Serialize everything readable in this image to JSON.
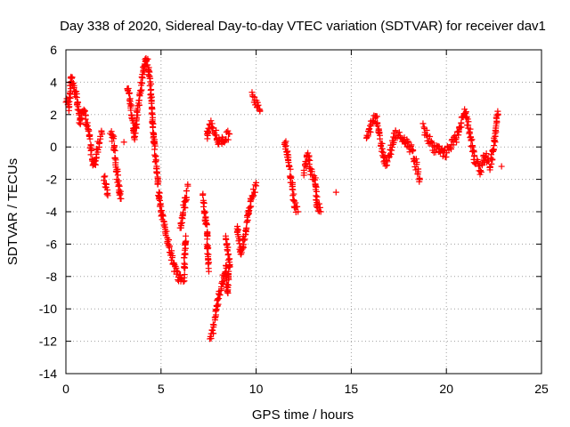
{
  "chart_data": {
    "type": "scatter",
    "title": "Day 338 of 2020, Sidereal Day-to-day VTEC variation (SDTVAR) for receiver dav1",
    "xlabel": "GPS time / hours",
    "ylabel": "SDTVAR / TECUs",
    "xlim": [
      0,
      25
    ],
    "ylim": [
      -14,
      6
    ],
    "xticks": [
      0,
      5,
      10,
      15,
      20,
      25
    ],
    "yticks": [
      -14,
      -12,
      -10,
      -8,
      -6,
      -4,
      -2,
      0,
      2,
      4,
      6
    ],
    "grid": true,
    "marker": "plus",
    "marker_color": "#ff0000",
    "series": [
      {
        "name": "SDTVAR",
        "trace": [
          [
            0.0,
            3.0
          ],
          [
            0.15,
            2.5
          ],
          [
            0.3,
            4.3
          ],
          [
            0.45,
            3.5
          ],
          [
            0.6,
            2.8
          ],
          [
            0.75,
            1.5
          ],
          [
            0.9,
            2.5
          ],
          [
            1.05,
            1.8
          ],
          [
            1.2,
            0.8
          ],
          [
            1.35,
            -0.5
          ],
          [
            1.5,
            -1.2
          ],
          [
            1.7,
            0.2
          ],
          [
            1.9,
            0.8
          ],
          [
            2.0,
            -1.8
          ],
          [
            2.2,
            -3.0
          ],
          [
            2.35,
            0.9
          ],
          [
            2.5,
            0.4
          ],
          [
            2.7,
            -1.8
          ],
          [
            2.9,
            -3.2
          ],
          [
            3.05,
            0.3
          ],
          [
            3.25,
            3.8
          ],
          [
            3.45,
            2.2
          ],
          [
            3.6,
            0.5
          ],
          [
            3.8,
            2.5
          ],
          [
            4.0,
            4.2
          ],
          [
            4.2,
            5.6
          ],
          [
            4.35,
            4.8
          ],
          [
            4.5,
            2.9
          ],
          [
            4.6,
            0.8
          ],
          [
            4.75,
            -1.2
          ],
          [
            4.9,
            -3.0
          ],
          [
            5.05,
            -4.2
          ],
          [
            5.2,
            -5.0
          ],
          [
            5.4,
            -6.0
          ],
          [
            5.6,
            -7.0
          ],
          [
            5.8,
            -7.8
          ],
          [
            6.0,
            -8.2
          ],
          [
            6.2,
            -8.0
          ],
          [
            6.3,
            -5.5
          ],
          [
            6.4,
            -2.5
          ],
          [
            6.2,
            -3.8
          ],
          [
            6.0,
            -5.0
          ],
          [
            7.2,
            -3.0
          ],
          [
            7.4,
            -5.0
          ],
          [
            7.5,
            -7.5
          ],
          [
            7.55,
            -11.8
          ],
          [
            7.7,
            -11.5
          ],
          [
            7.85,
            -10.5
          ],
          [
            8.0,
            -9.5
          ],
          [
            8.2,
            -8.5
          ],
          [
            8.4,
            -7.5
          ],
          [
            8.5,
            -9.0
          ],
          [
            8.6,
            -7.0
          ],
          [
            8.4,
            -5.5
          ],
          [
            7.4,
            0.5
          ],
          [
            7.6,
            1.5
          ],
          [
            7.8,
            1.0
          ],
          [
            8.0,
            0.3
          ],
          [
            8.3,
            0.5
          ],
          [
            8.6,
            0.8
          ],
          [
            9.0,
            -5.0
          ],
          [
            9.2,
            -6.5
          ],
          [
            9.4,
            -5.5
          ],
          [
            9.6,
            -4.0
          ],
          [
            9.8,
            -3.0
          ],
          [
            10.0,
            -2.4
          ],
          [
            9.8,
            3.2
          ],
          [
            10.0,
            2.8
          ],
          [
            10.2,
            2.2
          ],
          [
            11.5,
            0.5
          ],
          [
            11.7,
            -1.0
          ],
          [
            11.9,
            -2.5
          ],
          [
            12.0,
            -3.5
          ],
          [
            12.2,
            -4.0
          ],
          [
            12.5,
            -1.5
          ],
          [
            12.7,
            -0.5
          ],
          [
            12.9,
            -1.5
          ],
          [
            13.1,
            -2.0
          ],
          [
            13.2,
            -3.5
          ],
          [
            13.4,
            -4.0
          ],
          [
            14.2,
            -2.8
          ],
          [
            15.8,
            0.5
          ],
          [
            16.0,
            1.2
          ],
          [
            16.3,
            2.0
          ],
          [
            16.6,
            0.0
          ],
          [
            16.8,
            -1.0
          ],
          [
            17.0,
            -0.5
          ],
          [
            17.3,
            0.8
          ],
          [
            18.0,
            0.2
          ],
          [
            18.3,
            -0.6
          ],
          [
            18.6,
            -2.0
          ],
          [
            18.8,
            1.2
          ],
          [
            19.0,
            0.6
          ],
          [
            19.3,
            0.0
          ],
          [
            19.6,
            -0.2
          ],
          [
            19.9,
            -0.5
          ],
          [
            20.2,
            0.0
          ],
          [
            20.5,
            0.5
          ],
          [
            20.8,
            1.5
          ],
          [
            21.0,
            2.2
          ],
          [
            21.2,
            1.0
          ],
          [
            21.5,
            -0.8
          ],
          [
            21.8,
            -1.5
          ],
          [
            22.0,
            -0.5
          ],
          [
            22.3,
            -1.2
          ],
          [
            22.5,
            0.0
          ],
          [
            22.7,
            2.2
          ],
          [
            22.9,
            -1.2
          ]
        ]
      }
    ]
  }
}
